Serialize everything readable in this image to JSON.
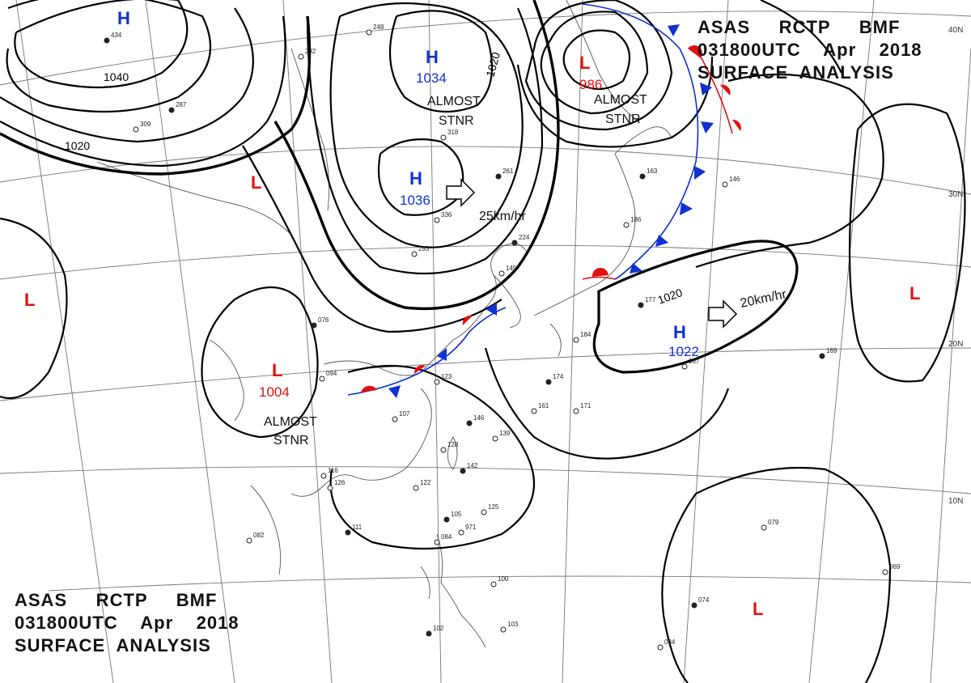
{
  "header": {
    "line1": "ASAS     RCTP     BMF",
    "line2": "031800UTC    Apr    2018",
    "line3": "SURFACE  ANALYSIS"
  },
  "latitude_labels": [
    "40N",
    "30N",
    "20N",
    "10N"
  ],
  "pressure_systems": [
    {
      "id": "h-nw",
      "type": "H",
      "color": "#1030d0",
      "value": ""
    },
    {
      "id": "l-west1",
      "type": "L",
      "color": "#e01010",
      "value": ""
    },
    {
      "id": "l-west2",
      "type": "L",
      "color": "#e01010",
      "value": ""
    },
    {
      "id": "h-mongolia",
      "type": "H",
      "color": "#1030d0",
      "value": "1034"
    },
    {
      "id": "h-china",
      "type": "H",
      "color": "#1030d0",
      "value": "1036"
    },
    {
      "id": "l-okhotsk",
      "type": "L",
      "color": "#e01010",
      "value": "986"
    },
    {
      "id": "l-south-china",
      "type": "L",
      "color": "#e01010",
      "value": "1004"
    },
    {
      "id": "h-pacific",
      "type": "H",
      "color": "#1030d0",
      "value": "1022"
    },
    {
      "id": "l-east",
      "type": "L",
      "color": "#e01010",
      "value": ""
    },
    {
      "id": "l-southeast",
      "type": "L",
      "color": "#e01010",
      "value": ""
    }
  ],
  "notes": [
    {
      "id": "almost-stnr-1",
      "lines": [
        "ALMOST",
        "STNR"
      ]
    },
    {
      "id": "almost-stnr-2",
      "lines": [
        "ALMOST",
        "STNR"
      ]
    },
    {
      "id": "almost-stnr-3",
      "lines": [
        "ALMOST",
        "STNR"
      ]
    },
    {
      "id": "move-1",
      "lines": [
        "25km/hr"
      ]
    },
    {
      "id": "move-2",
      "lines": [
        "20km/hr"
      ]
    }
  ],
  "isobar_labels": [
    "1040",
    "1020",
    "1020",
    "1020"
  ],
  "stations": [
    "434",
    "232",
    "248",
    "287",
    "309",
    "318",
    "261",
    "336",
    "293",
    "224",
    "145",
    "094",
    "076",
    "123",
    "107",
    "146",
    "128",
    "139",
    "142",
    "122",
    "125",
    "105",
    "084",
    "100",
    "102",
    "103",
    "082",
    "111",
    "116",
    "126",
    "163",
    "146",
    "186",
    "177",
    "184",
    "167",
    "174",
    "161",
    "171",
    "169",
    "079",
    "069",
    "074",
    "084",
    "971"
  ],
  "colors": {
    "high": "#1030d0",
    "low": "#e01010",
    "isobar": "#000000",
    "coast": "#555555",
    "grid": "#777777"
  }
}
